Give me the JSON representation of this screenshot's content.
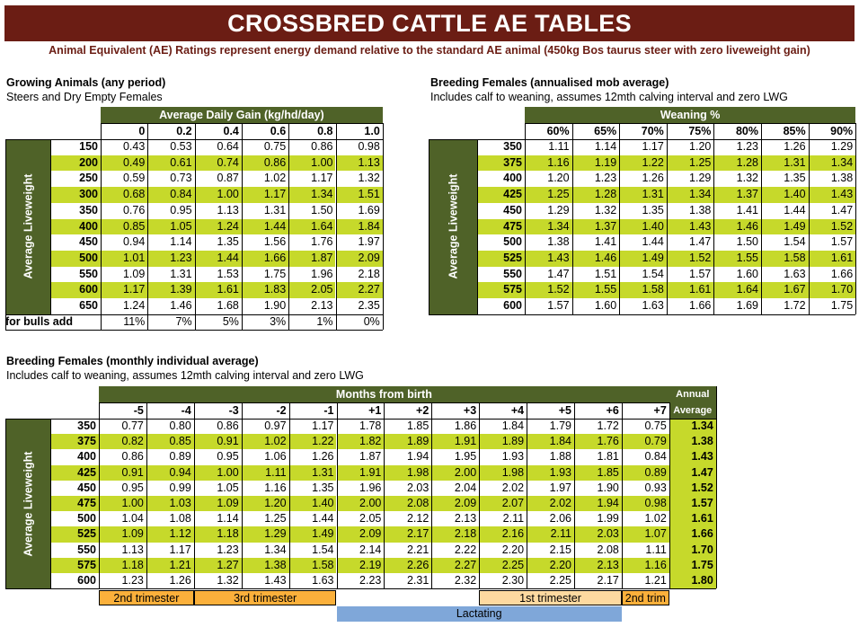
{
  "header": {
    "title": "CROSSBRED CATTLE AE TABLES",
    "subtitle": "Animal Equivalent (AE) Ratings represent energy demand relative to the standard AE animal (450kg Bos taurus steer with zero liveweight gain)"
  },
  "colors": {
    "banner": "#6b1d14",
    "dark_green": "#4f6228",
    "lime": "#c6d92b",
    "orange": "#fbb03b",
    "light_orange": "#fdd9a0",
    "blue": "#7fa7d9"
  },
  "growing": {
    "title": "Growing Animals (any period)",
    "subtitle": "Steers and Dry Empty Females",
    "col_group_label": "Average Daily Gain (kg/hd/day)",
    "row_group_label": "Average Liveweight",
    "columns": [
      "0",
      "0.2",
      "0.4",
      "0.6",
      "0.8",
      "1.0"
    ],
    "rows": [
      {
        "lw": "150",
        "values": [
          "0.43",
          "0.53",
          "0.64",
          "0.75",
          "0.86",
          "0.98"
        ]
      },
      {
        "lw": "200",
        "values": [
          "0.49",
          "0.61",
          "0.74",
          "0.86",
          "1.00",
          "1.13"
        ]
      },
      {
        "lw": "250",
        "values": [
          "0.59",
          "0.73",
          "0.87",
          "1.02",
          "1.17",
          "1.32"
        ]
      },
      {
        "lw": "300",
        "values": [
          "0.68",
          "0.84",
          "1.00",
          "1.17",
          "1.34",
          "1.51"
        ]
      },
      {
        "lw": "350",
        "values": [
          "0.76",
          "0.95",
          "1.13",
          "1.31",
          "1.50",
          "1.69"
        ]
      },
      {
        "lw": "400",
        "values": [
          "0.85",
          "1.05",
          "1.24",
          "1.44",
          "1.64",
          "1.84"
        ]
      },
      {
        "lw": "450",
        "values": [
          "0.94",
          "1.14",
          "1.35",
          "1.56",
          "1.76",
          "1.97"
        ]
      },
      {
        "lw": "500",
        "values": [
          "1.01",
          "1.23",
          "1.44",
          "1.66",
          "1.87",
          "2.09"
        ]
      },
      {
        "lw": "550",
        "values": [
          "1.09",
          "1.31",
          "1.53",
          "1.75",
          "1.96",
          "2.18"
        ]
      },
      {
        "lw": "600",
        "values": [
          "1.17",
          "1.39",
          "1.61",
          "1.83",
          "2.05",
          "2.27"
        ]
      },
      {
        "lw": "650",
        "values": [
          "1.24",
          "1.46",
          "1.68",
          "1.90",
          "2.13",
          "2.35"
        ]
      }
    ],
    "bulls_label": "for bulls add",
    "bulls_values": [
      "11%",
      "7%",
      "5%",
      "3%",
      "1%",
      "0%"
    ]
  },
  "annualised": {
    "title": "Breeding Females (annualised mob average)",
    "subtitle": "Includes calf to weaning, assumes 12mth calving interval and zero LWG",
    "col_group_label": "Weaning %",
    "row_group_label": "Average Liveweight",
    "columns": [
      "60%",
      "65%",
      "70%",
      "75%",
      "80%",
      "85%",
      "90%"
    ],
    "rows": [
      {
        "lw": "350",
        "values": [
          "1.11",
          "1.14",
          "1.17",
          "1.20",
          "1.23",
          "1.26",
          "1.29"
        ]
      },
      {
        "lw": "375",
        "values": [
          "1.16",
          "1.19",
          "1.22",
          "1.25",
          "1.28",
          "1.31",
          "1.34"
        ]
      },
      {
        "lw": "400",
        "values": [
          "1.20",
          "1.23",
          "1.26",
          "1.29",
          "1.32",
          "1.35",
          "1.38"
        ]
      },
      {
        "lw": "425",
        "values": [
          "1.25",
          "1.28",
          "1.31",
          "1.34",
          "1.37",
          "1.40",
          "1.43"
        ]
      },
      {
        "lw": "450",
        "values": [
          "1.29",
          "1.32",
          "1.35",
          "1.38",
          "1.41",
          "1.44",
          "1.47"
        ]
      },
      {
        "lw": "475",
        "values": [
          "1.34",
          "1.37",
          "1.40",
          "1.43",
          "1.46",
          "1.49",
          "1.52"
        ]
      },
      {
        "lw": "500",
        "values": [
          "1.38",
          "1.41",
          "1.44",
          "1.47",
          "1.50",
          "1.54",
          "1.57"
        ]
      },
      {
        "lw": "525",
        "values": [
          "1.43",
          "1.46",
          "1.49",
          "1.52",
          "1.55",
          "1.58",
          "1.61"
        ]
      },
      {
        "lw": "550",
        "values": [
          "1.47",
          "1.51",
          "1.54",
          "1.57",
          "1.60",
          "1.63",
          "1.66"
        ]
      },
      {
        "lw": "575",
        "values": [
          "1.52",
          "1.55",
          "1.58",
          "1.61",
          "1.64",
          "1.67",
          "1.70"
        ]
      },
      {
        "lw": "600",
        "values": [
          "1.57",
          "1.60",
          "1.63",
          "1.66",
          "1.69",
          "1.72",
          "1.75"
        ]
      }
    ]
  },
  "monthly": {
    "title": "Breeding Females (monthly individual average)",
    "subtitle": "Includes calf to weaning, assumes 12mth calving interval and zero LWG",
    "col_group_label": "Months from birth",
    "annual_label_1": "Annual",
    "annual_label_2": "Average",
    "row_group_label": "Average Liveweight",
    "columns": [
      "-5",
      "-4",
      "-3",
      "-2",
      "-1",
      "+1",
      "+2",
      "+3",
      "+4",
      "+5",
      "+6",
      "+7"
    ],
    "rows": [
      {
        "lw": "350",
        "values": [
          "0.77",
          "0.80",
          "0.86",
          "0.97",
          "1.17",
          "1.78",
          "1.85",
          "1.86",
          "1.84",
          "1.79",
          "1.72",
          "0.75"
        ],
        "annual": "1.34"
      },
      {
        "lw": "375",
        "values": [
          "0.82",
          "0.85",
          "0.91",
          "1.02",
          "1.22",
          "1.82",
          "1.89",
          "1.91",
          "1.89",
          "1.84",
          "1.76",
          "0.79"
        ],
        "annual": "1.38"
      },
      {
        "lw": "400",
        "values": [
          "0.86",
          "0.89",
          "0.95",
          "1.06",
          "1.26",
          "1.87",
          "1.94",
          "1.95",
          "1.93",
          "1.88",
          "1.81",
          "0.84"
        ],
        "annual": "1.43"
      },
      {
        "lw": "425",
        "values": [
          "0.91",
          "0.94",
          "1.00",
          "1.11",
          "1.31",
          "1.91",
          "1.98",
          "2.00",
          "1.98",
          "1.93",
          "1.85",
          "0.89"
        ],
        "annual": "1.47"
      },
      {
        "lw": "450",
        "values": [
          "0.95",
          "0.99",
          "1.05",
          "1.16",
          "1.35",
          "1.96",
          "2.03",
          "2.04",
          "2.02",
          "1.97",
          "1.90",
          "0.93"
        ],
        "annual": "1.52"
      },
      {
        "lw": "475",
        "values": [
          "1.00",
          "1.03",
          "1.09",
          "1.20",
          "1.40",
          "2.00",
          "2.08",
          "2.09",
          "2.07",
          "2.02",
          "1.94",
          "0.98"
        ],
        "annual": "1.57"
      },
      {
        "lw": "500",
        "values": [
          "1.04",
          "1.08",
          "1.14",
          "1.25",
          "1.44",
          "2.05",
          "2.12",
          "2.13",
          "2.11",
          "2.06",
          "1.99",
          "1.02"
        ],
        "annual": "1.61"
      },
      {
        "lw": "525",
        "values": [
          "1.09",
          "1.12",
          "1.18",
          "1.29",
          "1.49",
          "2.09",
          "2.17",
          "2.18",
          "2.16",
          "2.11",
          "2.03",
          "1.07"
        ],
        "annual": "1.66"
      },
      {
        "lw": "550",
        "values": [
          "1.13",
          "1.17",
          "1.23",
          "1.34",
          "1.54",
          "2.14",
          "2.21",
          "2.22",
          "2.20",
          "2.15",
          "2.08",
          "1.11"
        ],
        "annual": "1.70"
      },
      {
        "lw": "575",
        "values": [
          "1.18",
          "1.21",
          "1.27",
          "1.38",
          "1.58",
          "2.19",
          "2.26",
          "2.27",
          "2.25",
          "2.20",
          "2.13",
          "1.16"
        ],
        "annual": "1.75"
      },
      {
        "lw": "600",
        "values": [
          "1.23",
          "1.26",
          "1.32",
          "1.43",
          "1.63",
          "2.23",
          "2.31",
          "2.32",
          "2.30",
          "2.25",
          "2.17",
          "1.21"
        ],
        "annual": "1.80"
      }
    ],
    "phases": {
      "second_trimester": "2nd trimester",
      "third_trimester": "3rd trimester",
      "first_trimester": "1st trimester",
      "second_trimester_short": "2nd trim",
      "lactating": "Lactating"
    }
  }
}
